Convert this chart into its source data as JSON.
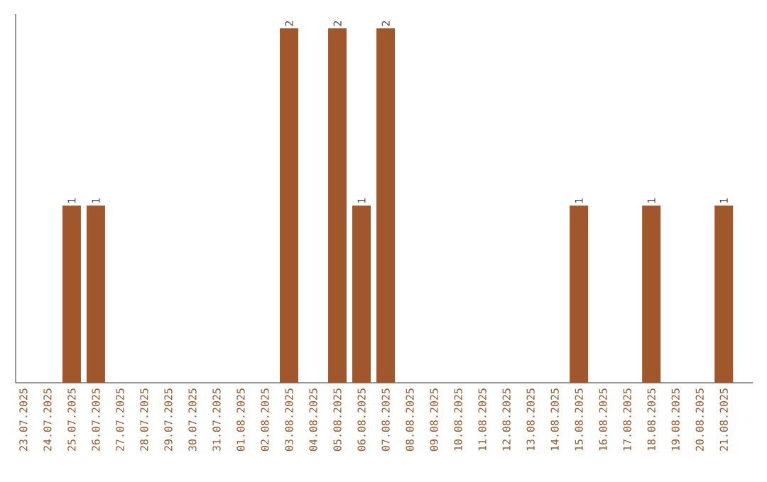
{
  "chart_data": {
    "type": "bar",
    "categories": [
      "23.07.2025",
      "24.07.2025",
      "25.07.2025",
      "26.07.2025",
      "27.07.2025",
      "28.07.2025",
      "29.07.2025",
      "30.07.2025",
      "31.07.2025",
      "01.08.2025",
      "02.08.2025",
      "03.08.2025",
      "04.08.2025",
      "05.08.2025",
      "06.08.2025",
      "07.08.2025",
      "08.08.2025",
      "09.08.2025",
      "10.08.2025",
      "11.08.2025",
      "12.08.2025",
      "13.08.2025",
      "14.08.2025",
      "15.08.2025",
      "16.08.2025",
      "17.08.2025",
      "18.08.2025",
      "19.08.2025",
      "20.08.2025",
      "21.08.2025"
    ],
    "values": [
      0,
      0,
      1,
      1,
      0,
      0,
      0,
      0,
      0,
      0,
      0,
      2,
      0,
      2,
      1,
      2,
      0,
      0,
      0,
      0,
      0,
      0,
      0,
      1,
      0,
      0,
      1,
      0,
      0,
      1
    ],
    "value_labels": [
      null,
      null,
      "1",
      "1",
      null,
      null,
      null,
      null,
      null,
      null,
      null,
      "2",
      null,
      "2",
      "1",
      "2",
      null,
      null,
      null,
      null,
      null,
      null,
      null,
      "1",
      null,
      null,
      "1",
      null,
      null,
      "1"
    ],
    "color": "#a0572b",
    "ylim": [
      0,
      2.08
    ],
    "tick_labels": "x",
    "grid": false
  }
}
